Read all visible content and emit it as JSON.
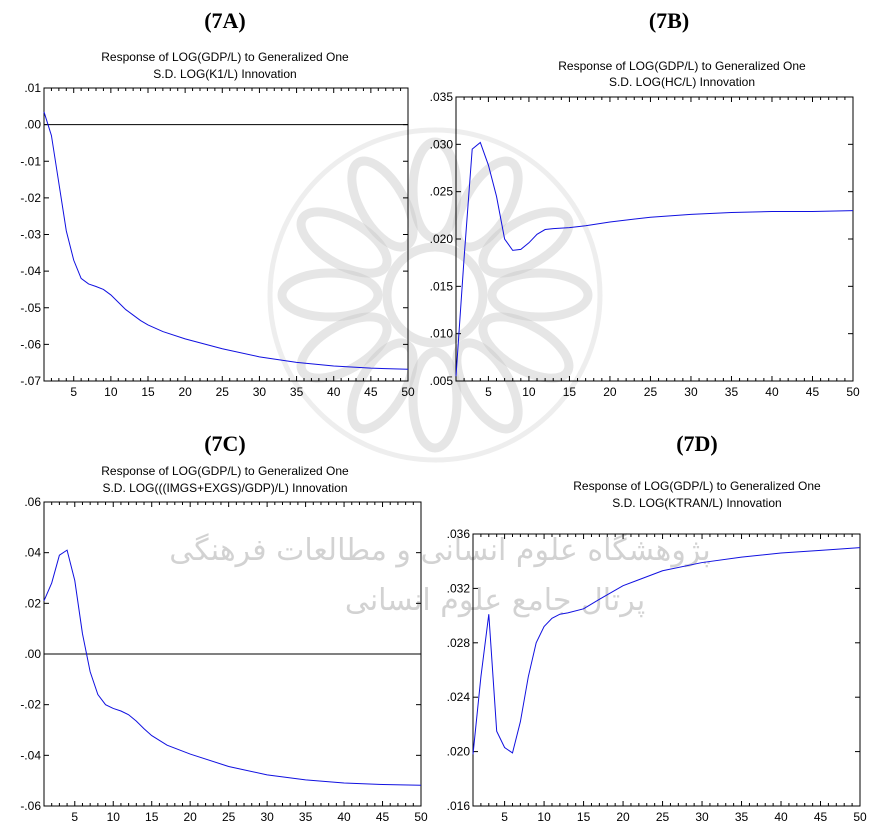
{
  "watermark": {
    "text": "پژوهشگاه علوم انسانی و مطالعات فرهنگی پرتال جامع علوم انسانی",
    "line1": "پژوهشگاه علوم انسانی و مطالعات فرهنگی",
    "line2": "پرتال جامع علوم انسانی",
    "color": "#c8c8c8"
  },
  "panels": [
    {
      "label": "(7A)",
      "title_line1": "Response of LOG(GDP/L) to Generalized One",
      "title_line2": "S.D. LOG(K1/L) Innovation"
    },
    {
      "label": "(7B)",
      "title_line1": "Response of LOG(GDP/L) to Generalized One",
      "title_line2": "S.D. LOG(HC/L) Innovation"
    },
    {
      "label": "(7C)",
      "title_line1": "Response of LOG(GDP/L) to Generalized One",
      "title_line2": "S.D. LOG(((IMGS+EXGS)/GDP)/L) Innovation"
    },
    {
      "label": "(7D)",
      "title_line1": "Response of LOG(GDP/L) to Generalized One",
      "title_line2": "S.D. LOG(KTRAN/L) Innovation"
    }
  ],
  "chart_data": [
    {
      "type": "line",
      "title": "Response of LOG(GDP/L) to Generalized One S.D. LOG(K1/L) Innovation",
      "xlabel": "",
      "ylabel": "",
      "xlim": [
        1,
        50
      ],
      "ylim": [
        -0.07,
        0.01
      ],
      "x_ticks": [
        5,
        10,
        15,
        20,
        25,
        30,
        35,
        40,
        45,
        50
      ],
      "y_ticks": [
        0.01,
        0.0,
        -0.01,
        -0.02,
        -0.03,
        -0.04,
        -0.05,
        -0.06,
        -0.07
      ],
      "y_tick_labels": [
        ".01",
        ".00",
        "-.01",
        "-.02",
        "-.03",
        "-.04",
        "-.05",
        "-.06",
        "-.07"
      ],
      "zero_line": true,
      "color": "#1010e0",
      "x": [
        1,
        2,
        3,
        4,
        5,
        6,
        7,
        8,
        9,
        10,
        11,
        12,
        13,
        14,
        15,
        17,
        20,
        25,
        30,
        35,
        40,
        45,
        50
      ],
      "values": [
        0.0035,
        -0.003,
        -0.016,
        -0.029,
        -0.037,
        -0.042,
        -0.0435,
        -0.0442,
        -0.045,
        -0.0465,
        -0.0485,
        -0.0505,
        -0.052,
        -0.0535,
        -0.0547,
        -0.0565,
        -0.0585,
        -0.0612,
        -0.0634,
        -0.0649,
        -0.0659,
        -0.0665,
        -0.0668
      ]
    },
    {
      "type": "line",
      "title": "Response of LOG(GDP/L) to Generalized One S.D. LOG(HC/L) Innovation",
      "xlabel": "",
      "ylabel": "",
      "xlim": [
        1,
        50
      ],
      "ylim": [
        0.005,
        0.035
      ],
      "x_ticks": [
        5,
        10,
        15,
        20,
        25,
        30,
        35,
        40,
        45,
        50
      ],
      "y_ticks": [
        0.035,
        0.03,
        0.025,
        0.02,
        0.015,
        0.01,
        0.005
      ],
      "y_tick_labels": [
        ".035",
        ".030",
        ".025",
        ".020",
        ".015",
        ".010",
        ".005"
      ],
      "zero_line": false,
      "color": "#1010e0",
      "x": [
        1,
        2,
        3,
        4,
        5,
        6,
        7,
        8,
        9,
        10,
        11,
        12,
        13,
        15,
        17,
        20,
        25,
        30,
        35,
        40,
        45,
        50
      ],
      "values": [
        0.0055,
        0.018,
        0.0295,
        0.0302,
        0.0278,
        0.0245,
        0.02,
        0.0188,
        0.0189,
        0.0196,
        0.0205,
        0.021,
        0.0211,
        0.0212,
        0.0214,
        0.0218,
        0.0223,
        0.0226,
        0.0228,
        0.0229,
        0.0229,
        0.023
      ]
    },
    {
      "type": "line",
      "title": "Response of LOG(GDP/L) to Generalized One S.D. LOG(((IMGS+EXGS)/GDP)/L) Innovation",
      "xlabel": "",
      "ylabel": "",
      "xlim": [
        1,
        50
      ],
      "ylim": [
        -0.06,
        0.06
      ],
      "x_ticks": [
        5,
        10,
        15,
        20,
        25,
        30,
        35,
        40,
        45,
        50
      ],
      "y_ticks": [
        0.06,
        0.04,
        0.02,
        0.0,
        -0.02,
        -0.04,
        -0.06
      ],
      "y_tick_labels": [
        ".06",
        ".04",
        ".02",
        ".00",
        "-.02",
        "-.04",
        "-.06"
      ],
      "zero_line": true,
      "color": "#1010e0",
      "x": [
        1,
        2,
        3,
        4,
        5,
        6,
        7,
        8,
        9,
        10,
        11,
        12,
        13,
        14,
        15,
        17,
        20,
        25,
        30,
        35,
        40,
        45,
        50
      ],
      "values": [
        0.021,
        0.028,
        0.039,
        0.041,
        0.029,
        0.008,
        -0.007,
        -0.016,
        -0.02,
        -0.0215,
        -0.0225,
        -0.024,
        -0.0265,
        -0.0295,
        -0.0322,
        -0.036,
        -0.0395,
        -0.0444,
        -0.0477,
        -0.0497,
        -0.0509,
        -0.0515,
        -0.0518
      ]
    },
    {
      "type": "line",
      "title": "Response of LOG(GDP/L) to Generalized One S.D. LOG(KTRAN/L) Innovation",
      "xlabel": "",
      "ylabel": "",
      "xlim": [
        1,
        50
      ],
      "ylim": [
        0.016,
        0.036
      ],
      "x_ticks": [
        5,
        10,
        15,
        20,
        25,
        30,
        35,
        40,
        45,
        50
      ],
      "y_ticks": [
        0.036,
        0.032,
        0.028,
        0.024,
        0.02,
        0.016
      ],
      "y_tick_labels": [
        ".036",
        ".032",
        ".028",
        ".024",
        ".020",
        ".016"
      ],
      "zero_line": false,
      "color": "#1010e0",
      "x": [
        1,
        2,
        3,
        4,
        5,
        6,
        7,
        8,
        9,
        10,
        11,
        12,
        13,
        15,
        17,
        20,
        25,
        30,
        35,
        40,
        45,
        50
      ],
      "values": [
        0.0198,
        0.0255,
        0.0301,
        0.0215,
        0.0203,
        0.0199,
        0.0222,
        0.0255,
        0.028,
        0.0292,
        0.0298,
        0.0301,
        0.0302,
        0.0305,
        0.0312,
        0.0322,
        0.0333,
        0.0339,
        0.0343,
        0.0346,
        0.0348,
        0.035
      ]
    }
  ]
}
